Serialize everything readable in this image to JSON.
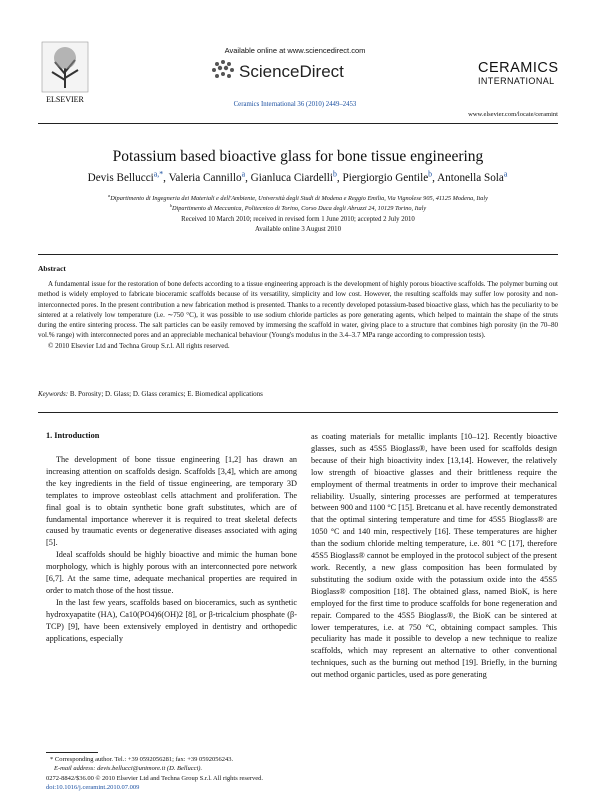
{
  "header": {
    "publisher": "ELSEVIER",
    "available": "Available online at www.sciencedirect.com",
    "platform": "ScienceDirect",
    "citation": "Ceramics International 36 (2010) 2449–2453",
    "journal_line1": "CERAMICS",
    "journal_line2": "INTERNATIONAL",
    "url": "www.elsevier.com/locate/ceramint"
  },
  "article": {
    "title": "Potassium based bioactive glass for bone tissue engineering",
    "authors": [
      {
        "name": "Devis Bellucci",
        "sup": "a,*"
      },
      {
        "name": "Valeria Cannillo",
        "sup": "a"
      },
      {
        "name": "Gianluca Ciardelli",
        "sup": "b"
      },
      {
        "name": "Piergiorgio Gentile",
        "sup": "b"
      },
      {
        "name": "Antonella Sola",
        "sup": "a"
      }
    ],
    "affiliations": [
      {
        "sup": "a",
        "text": "Dipartimento di Ingegneria dei Materiali e dell'Ambiente, Università degli Studi di Modena e Reggio Emilia, Via Vignolese 905, 41125 Modena, Italy"
      },
      {
        "sup": "b",
        "text": "Dipartimento di Meccanica, Politecnico di Torino, Corso Duca degli Abruzzi 24, 10129 Torino, Italy"
      }
    ],
    "received": "Received 10 March 2010; received in revised form 1 June 2010; accepted 2 July 2010",
    "online": "Available online 3 August 2010"
  },
  "abstract": {
    "heading": "Abstract",
    "text": "A fundamental issue for the restoration of bone defects according to a tissue engineering approach is the development of highly porous bioactive scaffolds. The polymer burning out method is widely employed to fabricate bioceramic scaffolds because of its versatility, simplicity and low cost. However, the resulting scaffolds may suffer low porosity and non-interconnected pores. In the present contribution a new fabrication method is presented. Thanks to a recently developed potassium-based bioactive glass, which has the peculiarity to be sintered at a relatively low temperature (i.e. ∼750 °C), it was possible to use sodium chloride particles as pore generating agents, which helped to maintain the shape of the struts during the entire sintering process. The salt particles can be easily removed by immersing the scaffold in water, giving place to a structure that combines high porosity (in the 70–80 vol.% range) with interconnected pores and an appreciable mechanical behaviour (Young's modulus in the 3.4–3.7 MPa range according to compression tests).",
    "copyright": "© 2010 Elsevier Ltd and Techna Group S.r.l. All rights reserved.",
    "keywords_label": "Keywords:",
    "keywords": "B. Porosity; D. Glass; D. Glass ceramics; E. Biomedical applications"
  },
  "body": {
    "heading": "1. Introduction",
    "left_paragraphs": [
      "The development of bone tissue engineering [1,2] has drawn an increasing attention on scaffolds design. Scaffolds [3,4], which are among the key ingredients in the field of tissue engineering, are temporary 3D templates to improve osteoblast cells attachment and proliferation. The final goal is to obtain synthetic bone graft substitutes, which are of fundamental importance wherever it is required to treat skeletal defects caused by traumatic events or degenerative diseases associated with aging [5].",
      "Ideal scaffolds should be highly bioactive and mimic the human bone morphology, which is highly porous with an interconnected pore network [6,7]. At the same time, adequate mechanical properties are required in order to match those of the host tissue.",
      "In the last few years, scaffolds based on bioceramics, such as synthetic hydroxyapatite (HA), Ca10(PO4)6(OH)2 [8], or β-tricalcium phosphate (β-TCP) [9], have been extensively employed in dentistry and orthopedic applications, especially"
    ],
    "right_paragraph": "as coating materials for metallic implants [10–12]. Recently bioactive glasses, such as 45S5 Bioglass®, have been used for scaffolds design because of their high bioactivity index [13,14]. However, the relatively low strength of bioactive glasses and their brittleness require the employment of thermal treatments in order to improve their mechanical reliability. Usually, sintering processes are performed at temperatures between 900 and 1100 °C [15]. Bretcanu et al. have recently demonstrated that the optimal sintering temperature and time for 45S5 Bioglass® are 1050 °C and 140 min, respectively [16]. These temperatures are higher than the sodium chloride melting temperature, i.e. 801 °C [17], therefore 45S5 Bioglass® cannot be employed in the protocol subject of the present work. Recently, a new glass composition has been formulated by substituting the sodium oxide with the potassium oxide into the 45S5 Bioglass® composition [18]. The obtained glass, named BioK, is here employed for the first time to produce scaffolds for bone regeneration and repair. Compared to the 45S5 Bioglass®, the BioK can be sintered at lower temperatures, i.e. at 750 °C, obtaining compact samples. This peculiarity has made it possible to develop a new technique to realize scaffolds, which may represent an alternative to other conventional techniques, such as the burning out method [19]. Briefly, in the burning out method organic particles, used as pore generating"
  },
  "footnote": {
    "corresponding": "* Corresponding author. Tel.: +39 0592056281; fax: +39 0592056243.",
    "email": "E-mail address: devis.bellucci@unimore.it (D. Bellucci)."
  },
  "footer": {
    "issn": "0272-8842/$36.00 © 2010 Elsevier Ltd and Techna Group S.r.l. All rights reserved.",
    "doi": "doi:10.1016/j.ceramint.2010.07.009"
  }
}
